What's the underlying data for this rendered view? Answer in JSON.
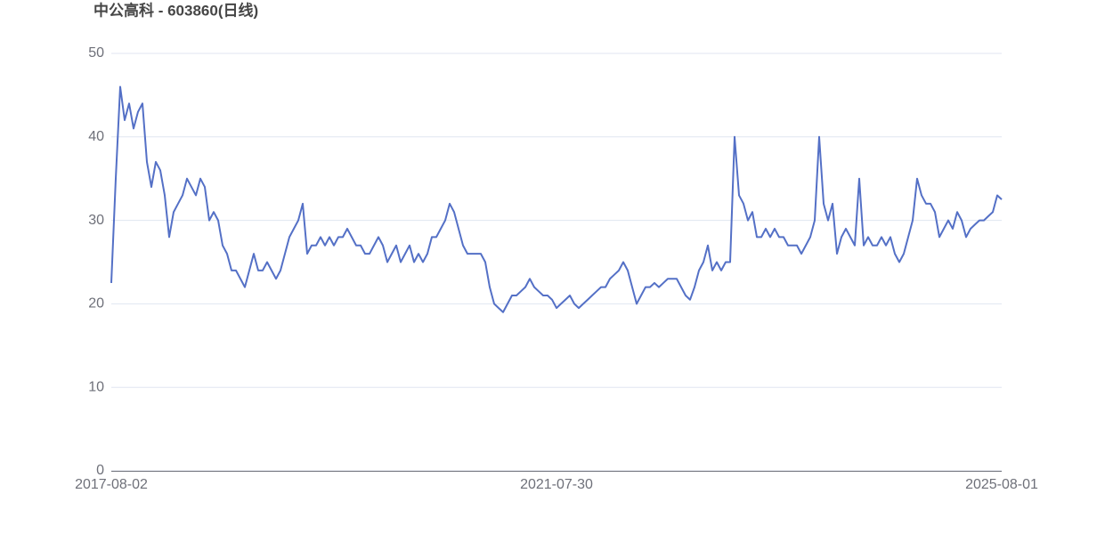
{
  "chart_data": {
    "type": "line",
    "title": "中公高科 - 603860(日线)",
    "categories": [
      "2017-08-02",
      null,
      null,
      null,
      null,
      null,
      null,
      null,
      null,
      null,
      null,
      null,
      null,
      null,
      null,
      null,
      null,
      null,
      null,
      null,
      null,
      null,
      null,
      null,
      null,
      null,
      null,
      null,
      null,
      null,
      null,
      null,
      null,
      null,
      null,
      null,
      null,
      null,
      null,
      null,
      null,
      null,
      null,
      null,
      null,
      null,
      null,
      null,
      null,
      null,
      null,
      null,
      null,
      null,
      null,
      null,
      null,
      null,
      null,
      null,
      null,
      null,
      null,
      null,
      null,
      null,
      null,
      null,
      null,
      null,
      null,
      null,
      null,
      null,
      null,
      null,
      null,
      null,
      null,
      null,
      null,
      null,
      null,
      null,
      null,
      null,
      null,
      null,
      null,
      null,
      null,
      null,
      null,
      null,
      null,
      null,
      null,
      null,
      null,
      null,
      "2021-07-30",
      null,
      null,
      null,
      null,
      null,
      null,
      null,
      null,
      null,
      null,
      null,
      null,
      null,
      null,
      null,
      null,
      null,
      null,
      null,
      null,
      null,
      null,
      null,
      null,
      null,
      null,
      null,
      null,
      null,
      null,
      null,
      null,
      null,
      null,
      null,
      null,
      null,
      null,
      null,
      null,
      null,
      null,
      null,
      null,
      null,
      null,
      null,
      null,
      null,
      null,
      null,
      null,
      null,
      null,
      null,
      null,
      null,
      null,
      null,
      null,
      null,
      null,
      null,
      null,
      null,
      null,
      null,
      null,
      null,
      null,
      null,
      null,
      null,
      null,
      null,
      null,
      null,
      null,
      null,
      null,
      null,
      null,
      null,
      null,
      null,
      null,
      null,
      null,
      null,
      null,
      null,
      null,
      null,
      null,
      null,
      null,
      null,
      null,
      null,
      "2025-08-01"
    ],
    "series": [
      {
        "color": "#5470c6",
        "values": [
          22.5,
          35,
          46,
          42,
          44,
          41,
          43,
          44,
          37,
          34,
          37,
          36,
          33,
          28,
          31,
          32,
          33,
          35,
          34,
          33,
          35,
          34,
          30,
          31,
          30,
          27,
          26,
          24,
          24,
          23,
          22,
          24,
          26,
          24,
          24,
          25,
          24,
          23,
          24,
          26,
          28,
          29,
          30,
          32,
          26,
          27,
          27,
          28,
          27,
          28,
          27,
          28,
          28,
          29,
          28,
          27,
          27,
          26,
          26,
          27,
          28,
          27,
          25,
          26,
          27,
          25,
          26,
          27,
          25,
          26,
          25,
          26,
          28,
          28,
          29,
          30,
          32,
          31,
          29,
          27,
          26,
          26,
          26,
          26,
          25,
          22,
          20,
          19.5,
          19,
          20,
          21,
          21,
          21.5,
          22,
          23,
          22,
          21.5,
          21,
          21,
          20.5,
          19.5,
          20,
          20.5,
          21,
          20,
          19.5,
          20,
          20.5,
          21,
          21.5,
          22,
          22,
          23,
          23.5,
          24,
          25,
          24,
          22,
          20,
          21,
          22,
          22,
          22.5,
          22,
          22.5,
          23,
          23,
          23,
          22,
          21,
          20.5,
          22,
          24,
          25,
          27,
          24,
          25,
          24,
          25,
          25,
          40,
          33,
          32,
          30,
          31,
          28,
          28,
          29,
          28,
          29,
          28,
          28,
          27,
          27,
          27,
          26,
          27,
          28,
          30,
          40,
          32,
          30,
          32,
          26,
          28,
          29,
          28,
          27,
          35,
          27,
          28,
          27,
          27,
          28,
          27,
          28,
          26,
          25,
          26,
          28,
          30,
          35,
          33,
          32,
          32,
          31,
          28,
          29,
          30,
          29,
          31,
          30,
          28,
          29,
          29.5,
          30,
          30,
          30.5,
          31,
          33,
          32.5
        ]
      }
    ],
    "ylim": [
      0,
      50
    ],
    "yticks": [
      0,
      10,
      20,
      30,
      40,
      50
    ],
    "grid": true
  }
}
